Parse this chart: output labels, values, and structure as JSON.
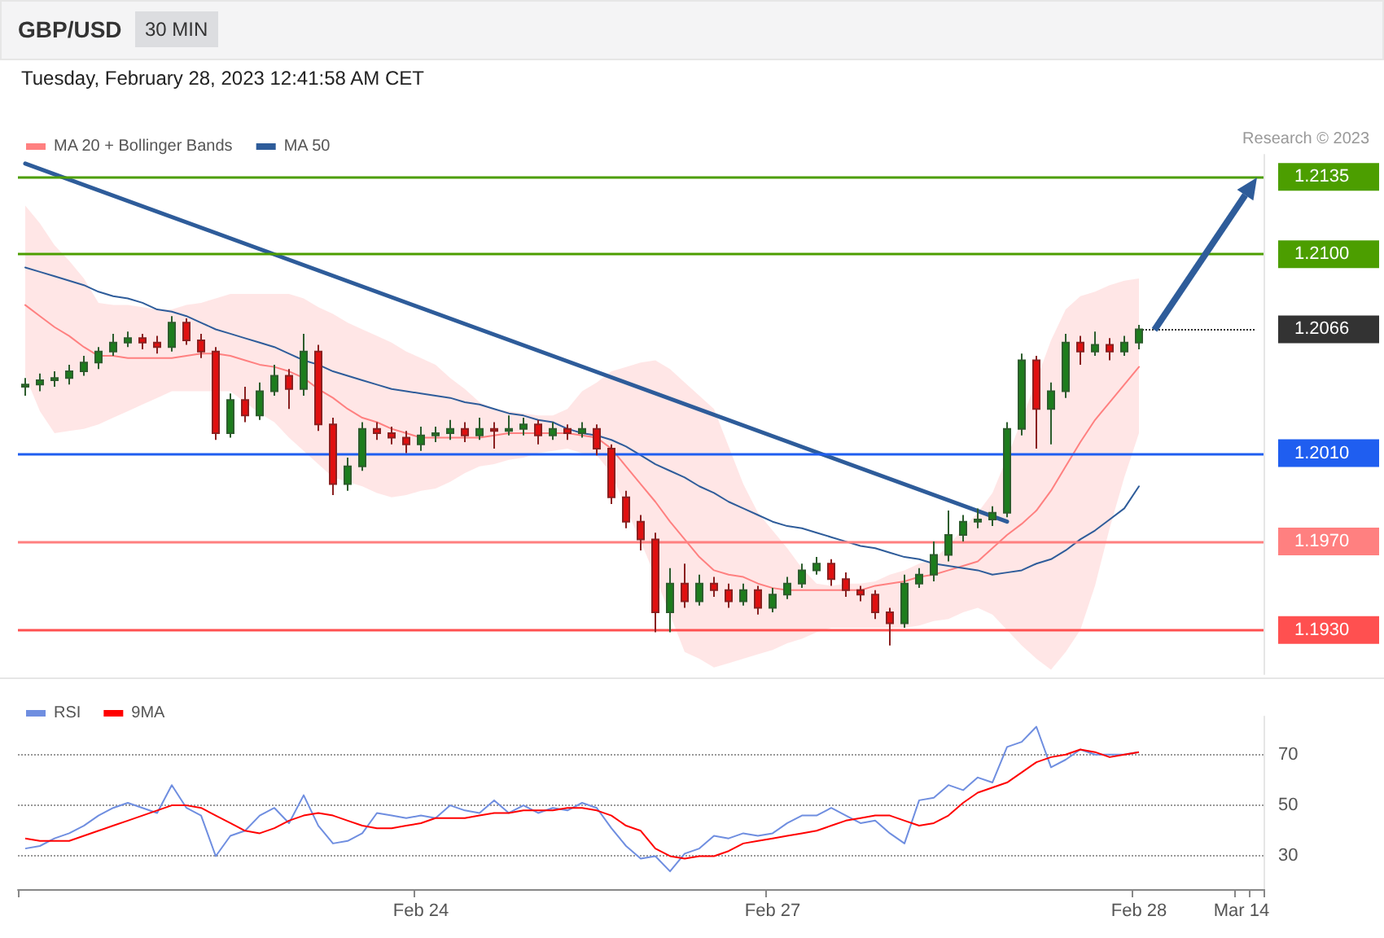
{
  "chart_data": [
    {
      "type": "candlestick",
      "title": "GBP/USD",
      "subtitle": "Tuesday, February 28, 2023 12:41:58 AM CET",
      "annotations": [
        "30 MIN",
        "Research © 2023"
      ],
      "categories": [
        null,
        null,
        null,
        null,
        null,
        null,
        null,
        null,
        null,
        null,
        null,
        null,
        null,
        null,
        null,
        null,
        null,
        null,
        null,
        null,
        null,
        null,
        null,
        null,
        null,
        null,
        null,
        null,
        null,
        null,
        null,
        null,
        null,
        null,
        null,
        null,
        null,
        null,
        null,
        null,
        null,
        null,
        null,
        null,
        null,
        null,
        null,
        null,
        null,
        null,
        null,
        null,
        null,
        null,
        null,
        null,
        null,
        null,
        null,
        null,
        null,
        null,
        null,
        null,
        null,
        null,
        null,
        null,
        null,
        null,
        null,
        null,
        null,
        null,
        null,
        null,
        null,
        null,
        null,
        null,
        null,
        null,
        null,
        null,
        null
      ],
      "ohlc": [
        [
          1.204,
          1.2044,
          1.2036,
          1.2041
        ],
        [
          1.2041,
          1.2046,
          1.2038,
          1.2043
        ],
        [
          1.2043,
          1.2047,
          1.204,
          1.2044
        ],
        [
          1.2044,
          1.205,
          1.2041,
          1.2047
        ],
        [
          1.2047,
          1.2054,
          1.2045,
          1.2051
        ],
        [
          1.2051,
          1.2058,
          1.2048,
          1.2056
        ],
        [
          1.2056,
          1.2064,
          1.2054,
          1.206
        ],
        [
          1.206,
          1.2065,
          1.2058,
          1.2062
        ],
        [
          1.2062,
          1.2064,
          1.2057,
          1.206
        ],
        [
          1.206,
          1.2063,
          1.2055,
          1.2058
        ],
        [
          1.2058,
          1.2072,
          1.2056,
          1.2069
        ],
        [
          1.2069,
          1.2071,
          1.2059,
          1.2061
        ],
        [
          1.2061,
          1.2064,
          1.2053,
          1.2056
        ],
        [
          1.2056,
          1.2058,
          1.2016,
          1.2019
        ],
        [
          1.2019,
          1.2037,
          1.2017,
          1.2034
        ],
        [
          1.2034,
          1.204,
          1.2024,
          1.2027
        ],
        [
          1.2027,
          1.2042,
          1.2025,
          1.2038
        ],
        [
          1.2038,
          1.205,
          1.2036,
          1.2045
        ],
        [
          1.2045,
          1.2048,
          1.203,
          1.2039
        ],
        [
          1.2039,
          1.2064,
          1.2036,
          1.2056
        ],
        [
          1.2056,
          1.2059,
          1.202,
          1.2023
        ],
        [
          1.2023,
          1.2026,
          1.1991,
          1.1996
        ],
        [
          1.1996,
          1.2008,
          1.1993,
          1.2004
        ],
        [
          1.2004,
          1.2024,
          1.2002,
          1.2021
        ],
        [
          1.2021,
          1.2024,
          1.2016,
          1.2019
        ],
        [
          1.2019,
          1.2022,
          1.2014,
          1.2017
        ],
        [
          1.2017,
          1.202,
          1.201,
          1.2014
        ],
        [
          1.2014,
          1.2022,
          1.2011,
          1.2018
        ],
        [
          1.2018,
          1.2022,
          1.2015,
          1.2019
        ],
        [
          1.2019,
          1.2025,
          1.2016,
          1.2021
        ],
        [
          1.2021,
          1.2024,
          1.2015,
          1.2018
        ],
        [
          1.2018,
          1.2026,
          1.2016,
          1.2021
        ],
        [
          1.2021,
          1.2024,
          1.2012,
          1.202
        ],
        [
          1.202,
          1.2027,
          1.2018,
          1.2021
        ],
        [
          1.2021,
          1.2026,
          1.2018,
          1.2023
        ],
        [
          1.2023,
          1.2025,
          1.2014,
          1.2018
        ],
        [
          1.2018,
          1.2024,
          1.2016,
          1.2021
        ],
        [
          1.2021,
          1.2023,
          1.2016,
          1.2019
        ],
        [
          1.2019,
          1.2024,
          1.2017,
          1.2021
        ],
        [
          1.2021,
          1.2023,
          1.2009,
          1.2012
        ],
        [
          1.2012,
          1.2014,
          1.1987,
          1.199
        ],
        [
          1.199,
          1.1993,
          1.1976,
          1.1979
        ],
        [
          1.1979,
          1.1982,
          1.1966,
          1.1971
        ],
        [
          1.1971,
          1.1974,
          1.1929,
          1.1938
        ],
        [
          1.1938,
          1.1958,
          1.1929,
          1.1951
        ],
        [
          1.1951,
          1.196,
          1.194,
          1.1943
        ],
        [
          1.1943,
          1.1955,
          1.1941,
          1.1951
        ],
        [
          1.1951,
          1.1954,
          1.1945,
          1.1948
        ],
        [
          1.1948,
          1.1951,
          1.194,
          1.1943
        ],
        [
          1.1943,
          1.1951,
          1.1941,
          1.1948
        ],
        [
          1.1948,
          1.195,
          1.1937,
          1.194
        ],
        [
          1.194,
          1.1949,
          1.1938,
          1.1946
        ],
        [
          1.1946,
          1.1954,
          1.1944,
          1.1951
        ],
        [
          1.1951,
          1.196,
          1.1949,
          1.1957
        ],
        [
          1.1957,
          1.1963,
          1.1955,
          1.196
        ],
        [
          1.196,
          1.1962,
          1.195,
          1.1953
        ],
        [
          1.1953,
          1.1956,
          1.1945,
          1.1948
        ],
        [
          1.1948,
          1.195,
          1.1943,
          1.1946
        ],
        [
          1.1946,
          1.1948,
          1.1935,
          1.1938
        ],
        [
          1.1938,
          1.194,
          1.1923,
          1.1933
        ],
        [
          1.1933,
          1.1955,
          1.1931,
          1.1951
        ],
        [
          1.1951,
          1.1958,
          1.1949,
          1.1955
        ],
        [
          1.1955,
          1.197,
          1.1952,
          1.1964
        ],
        [
          1.1964,
          1.1984,
          1.1961,
          1.1973
        ],
        [
          1.1973,
          1.1982,
          1.197,
          1.1979
        ],
        [
          1.1979,
          1.1985,
          1.1976,
          1.198
        ],
        [
          1.198,
          1.1986,
          1.1977,
          1.1983
        ],
        [
          1.1983,
          1.2024,
          1.1981,
          1.2021
        ],
        [
          1.2021,
          1.2055,
          1.2018,
          1.2052
        ],
        [
          1.2052,
          1.2054,
          1.2012,
          1.203
        ],
        [
          1.203,
          1.2042,
          1.2014,
          1.2038
        ],
        [
          1.2038,
          1.2064,
          1.2035,
          1.206
        ],
        [
          1.206,
          1.2063,
          1.205,
          1.2056
        ],
        [
          1.2056,
          1.2065,
          1.2054,
          1.2059
        ],
        [
          1.2059,
          1.2062,
          1.2052,
          1.2056
        ],
        [
          1.2056,
          1.2063,
          1.2054,
          1.206
        ],
        [
          1.206,
          1.2068,
          1.2057,
          1.2066
        ],
        null,
        null,
        null,
        null,
        null,
        null,
        null,
        null
      ],
      "series": [
        {
          "type": "line",
          "name": "MA 20 + Bollinger Bands",
          "color": "#ff8080",
          "values": [
            1.2077,
            1.2072,
            1.2067,
            1.2063,
            1.2058,
            1.2054,
            1.2054,
            1.2053,
            1.2053,
            1.2053,
            1.2053,
            1.2054,
            1.2055,
            1.2055,
            1.2054,
            1.2052,
            1.205,
            1.2049,
            1.2047,
            1.2044,
            1.2039,
            1.2035,
            1.203,
            1.2026,
            1.2024,
            1.2021,
            1.2019,
            1.2017,
            1.2017,
            1.2017,
            1.2017,
            1.2017,
            1.2018,
            1.2019,
            1.2019,
            1.2019,
            1.2019,
            1.2019,
            1.2018,
            1.2017,
            1.2012,
            1.2004,
            1.1996,
            1.1988,
            1.1979,
            1.1971,
            1.1963,
            1.1957,
            1.1955,
            1.1954,
            1.1951,
            1.1949,
            1.1948,
            1.1948,
            1.1948,
            1.1948,
            1.1948,
            1.1948,
            1.195,
            1.1951,
            1.1952,
            1.1954,
            1.1955,
            1.1957,
            1.1959,
            1.1961,
            1.1967,
            1.1973,
            1.1978,
            1.1984,
            1.1993,
            1.2004,
            1.2015,
            1.2025,
            1.2033,
            1.2041,
            1.2049,
            null,
            null,
            null,
            null,
            null,
            null,
            null,
            null
          ],
          "upper": [
            1.2122,
            1.2114,
            1.2104,
            1.2097,
            1.2089,
            1.2078,
            1.2077,
            1.2077,
            1.2076,
            1.2075,
            1.2075,
            1.2077,
            1.2078,
            1.208,
            1.2082,
            1.2082,
            1.2082,
            1.2082,
            1.2082,
            1.208,
            1.2076,
            1.2073,
            1.2069,
            1.2066,
            1.2063,
            1.206,
            1.2056,
            1.2053,
            1.205,
            1.2044,
            1.2039,
            1.2033,
            1.203,
            1.2029,
            1.2028,
            1.2027,
            1.2027,
            1.203,
            1.2038,
            1.2042,
            1.2047,
            1.2049,
            1.2051,
            1.2052,
            1.2048,
            1.2042,
            1.2036,
            1.203,
            1.2013,
            1.1996,
            1.1983,
            1.1975,
            1.1967,
            1.1958,
            1.1951,
            1.195,
            1.1951,
            1.1951,
            1.1952,
            1.1955,
            1.1957,
            1.196,
            1.1962,
            1.1968,
            1.1976,
            1.1983,
            1.1992,
            1.2008,
            1.2025,
            1.2043,
            1.2061,
            1.2075,
            1.2081,
            1.2083,
            1.2086,
            1.2088,
            1.2089,
            null,
            null,
            null,
            null,
            null,
            null,
            null,
            null
          ],
          "lower": [
            1.2045,
            1.2029,
            1.2019,
            1.202,
            1.2021,
            1.2023,
            1.2026,
            1.2029,
            1.2032,
            1.2035,
            1.2038,
            1.2038,
            1.2038,
            1.2038,
            1.2038,
            1.2033,
            1.2028,
            1.2024,
            1.2017,
            1.2011,
            1.2005,
            1.1999,
            1.1997,
            1.1995,
            1.1992,
            1.199,
            1.1991,
            1.1993,
            1.1994,
            1.1997,
            1.2001,
            1.2004,
            1.2005,
            1.2007,
            1.2008,
            1.201,
            1.2011,
            1.2012,
            1.201,
            1.2009,
            1.2001,
            1.1985,
            1.197,
            1.1954,
            1.1937,
            1.192,
            1.1917,
            1.1913,
            1.1915,
            1.1917,
            1.1919,
            1.1921,
            1.1924,
            1.1926,
            1.1929,
            1.1931,
            1.1931,
            1.1931,
            1.1931,
            1.1931,
            1.1931,
            1.1932,
            1.1934,
            1.1935,
            1.1938,
            1.194,
            1.1937,
            1.193,
            1.1923,
            1.1917,
            1.1912,
            1.192,
            1.193,
            1.195,
            1.1976,
            1.1999,
            1.2019,
            null,
            null,
            null,
            null,
            null,
            null,
            null,
            null
          ]
        },
        {
          "type": "line",
          "name": "MA 50",
          "color": "#2e5c9a",
          "values": [
            1.2094,
            1.2092,
            1.209,
            1.2088,
            1.2086,
            1.2083,
            1.2081,
            1.208,
            1.2078,
            1.2075,
            1.2074,
            1.2072,
            1.2069,
            1.2066,
            1.2064,
            1.2062,
            1.206,
            1.2058,
            1.2055,
            1.2052,
            1.205,
            1.2047,
            1.2045,
            1.2043,
            1.2041,
            1.2039,
            1.2038,
            1.2037,
            1.2036,
            1.2035,
            1.2033,
            1.2032,
            1.203,
            1.2028,
            1.2027,
            1.2025,
            1.2024,
            1.2021,
            1.2019,
            1.2018,
            1.2016,
            1.2013,
            1.2009,
            1.2005,
            1.2002,
            1.1999,
            1.1995,
            1.1992,
            1.1988,
            1.1985,
            1.1982,
            1.1979,
            1.1977,
            1.1976,
            1.1974,
            1.1972,
            1.197,
            1.1968,
            1.1967,
            1.1965,
            1.1963,
            1.1962,
            1.196,
            1.1959,
            1.1958,
            1.1957,
            1.1955,
            1.1956,
            1.1957,
            1.196,
            1.1962,
            1.1966,
            1.1971,
            1.1975,
            1.198,
            1.1985,
            1.1995,
            null,
            null,
            null,
            null,
            null,
            null,
            null,
            null
          ]
        },
        {
          "type": "line",
          "color": "#2e5c9a",
          "values": [
            1.2141,
            null,
            null,
            null,
            null,
            null,
            null,
            null,
            null,
            null,
            null,
            null,
            null,
            null,
            null,
            null,
            null,
            null,
            null,
            null,
            null,
            null,
            null,
            null,
            null,
            null,
            null,
            null,
            null,
            null,
            null,
            null,
            null,
            null,
            null,
            null,
            null,
            null,
            null,
            null,
            null,
            null,
            null,
            null,
            null,
            null,
            null,
            null,
            null,
            null,
            null,
            null,
            null,
            null,
            null,
            null,
            null,
            null,
            null,
            null,
            null,
            null,
            null,
            null,
            null,
            null,
            null,
            1.1979,
            null,
            null,
            null,
            null,
            null,
            null,
            null,
            null,
            null,
            null,
            null,
            null,
            null,
            null,
            null,
            null,
            null
          ]
        }
      ],
      "ylim": [
        1.191,
        1.2145
      ],
      "yticks": [
        {
          "value": 1.193,
          "label": "1.1930"
        },
        {
          "value": 1.197,
          "label": "1.1970"
        },
        {
          "value": 1.201,
          "label": "1.2010"
        },
        {
          "value": 1.2066,
          "label": "1.2066"
        },
        {
          "value": 1.21,
          "label": "1.2100"
        },
        {
          "value": 1.2135,
          "label": "1.2135"
        }
      ],
      "tick_labels": "y",
      "legend": "top left",
      "ref_lines": [
        {
          "axis": "y",
          "value": 1.2135,
          "color": "#4c9e00",
          "line_style": "solid"
        },
        {
          "axis": "y",
          "value": 1.21,
          "color": "#4c9e00",
          "line_style": "solid"
        },
        {
          "axis": "y",
          "value": 1.2066,
          "color": "#333333",
          "line_style": "dotted"
        },
        {
          "axis": "y",
          "value": 1.201,
          "color": "#1f5ef0",
          "line_style": "solid"
        },
        {
          "axis": "y",
          "value": 1.197,
          "color": "#ff8080",
          "line_style": "solid"
        },
        {
          "axis": "y",
          "value": 1.193,
          "color": "#ff5050",
          "line_style": "solid"
        }
      ]
    },
    {
      "type": "line",
      "categories": [
        null,
        null,
        null,
        null,
        null,
        null,
        null,
        null,
        null,
        null,
        null,
        null,
        null,
        null,
        null,
        null,
        null,
        null,
        null,
        null,
        null,
        null,
        null,
        null,
        null,
        null,
        null,
        "Feb 24",
        null,
        null,
        null,
        null,
        null,
        null,
        null,
        null,
        null,
        null,
        null,
        null,
        null,
        null,
        null,
        null,
        null,
        null,
        null,
        null,
        null,
        null,
        null,
        "Feb 27",
        null,
        null,
        null,
        null,
        null,
        null,
        null,
        null,
        null,
        null,
        null,
        null,
        null,
        null,
        null,
        null,
        null,
        null,
        null,
        null,
        null,
        null,
        null,
        null,
        "Feb 28",
        null,
        null,
        null,
        null,
        null,
        null,
        "Mar 14",
        null
      ],
      "series": [
        {
          "name": "RSI",
          "color": "#6f8ee0",
          "values": [
            33,
            34,
            37,
            39,
            42,
            46,
            49,
            51,
            49,
            47,
            58,
            49,
            46,
            30,
            38,
            40,
            46,
            49,
            43,
            54,
            42,
            35,
            36,
            39,
            47,
            46,
            45,
            46,
            45,
            50,
            48,
            47,
            52,
            47,
            50,
            47,
            49,
            48,
            51,
            49,
            41,
            34,
            29,
            30,
            24,
            31,
            33,
            38,
            37,
            39,
            38,
            39,
            43,
            46,
            46,
            49,
            46,
            43,
            44,
            39,
            35,
            52,
            53,
            58,
            56,
            61,
            59,
            73,
            75,
            81,
            65,
            68,
            72,
            70,
            70,
            70,
            71,
            null,
            null,
            null,
            null,
            null,
            null,
            null,
            null
          ]
        },
        {
          "name": "9MA",
          "color": "#ff0000",
          "values": [
            37,
            36,
            36,
            36,
            38,
            40,
            42,
            44,
            46,
            48,
            50,
            50,
            49,
            46,
            43,
            40,
            39,
            41,
            44,
            46,
            47,
            46,
            44,
            42,
            41,
            41,
            42,
            43,
            45,
            45,
            45,
            46,
            47,
            47,
            48,
            48,
            48,
            49,
            49,
            48,
            46,
            42,
            40,
            33,
            30,
            29,
            30,
            30,
            32,
            35,
            36,
            37,
            38,
            39,
            40,
            42,
            44,
            45,
            46,
            46,
            44,
            42,
            43,
            46,
            51,
            55,
            57,
            59,
            63,
            67,
            69,
            70,
            72,
            71,
            69,
            70,
            71,
            null,
            null,
            null,
            null,
            null,
            null,
            null,
            null
          ]
        }
      ],
      "ylim": [
        17,
        85
      ],
      "yticks": [
        30,
        50,
        70
      ],
      "grid": "y",
      "legend": "top left"
    }
  ]
}
